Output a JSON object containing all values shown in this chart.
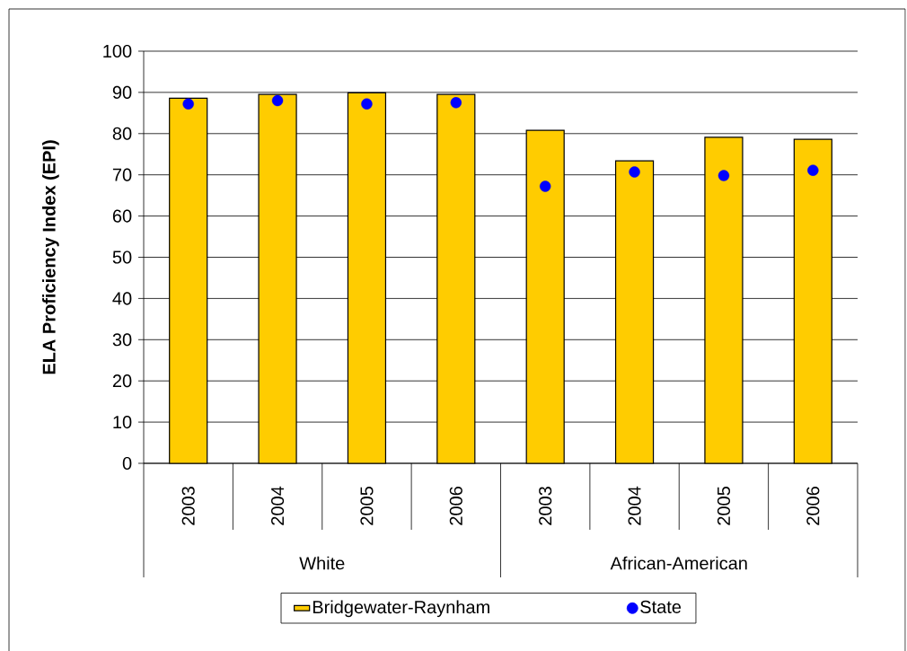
{
  "chart_data": {
    "type": "bar",
    "ylabel": "ELA Proficiency Index (EPI)",
    "categories": [
      "2003",
      "2004",
      "2005",
      "2006",
      "2003",
      "2004",
      "2005",
      "2006"
    ],
    "annotations": [
      "White",
      "African-American"
    ],
    "series": [
      {
        "name": "Bridgewater-Raynham",
        "color": "#ffcc00",
        "values": [
          88.6,
          89.5,
          89.9,
          89.5,
          80.8,
          73.4,
          79.1,
          78.6
        ]
      },
      {
        "name": "State",
        "type": "scatter",
        "color": "#0000ff",
        "values": [
          87.2,
          88.0,
          87.2,
          87.5,
          67.2,
          70.7,
          69.8,
          71.1
        ]
      }
    ],
    "ylim": [
      0,
      100
    ],
    "yticks": [
      0,
      10,
      20,
      30,
      40,
      50,
      60,
      70,
      80,
      90,
      100
    ],
    "grid": "y",
    "legend": "bottom"
  }
}
